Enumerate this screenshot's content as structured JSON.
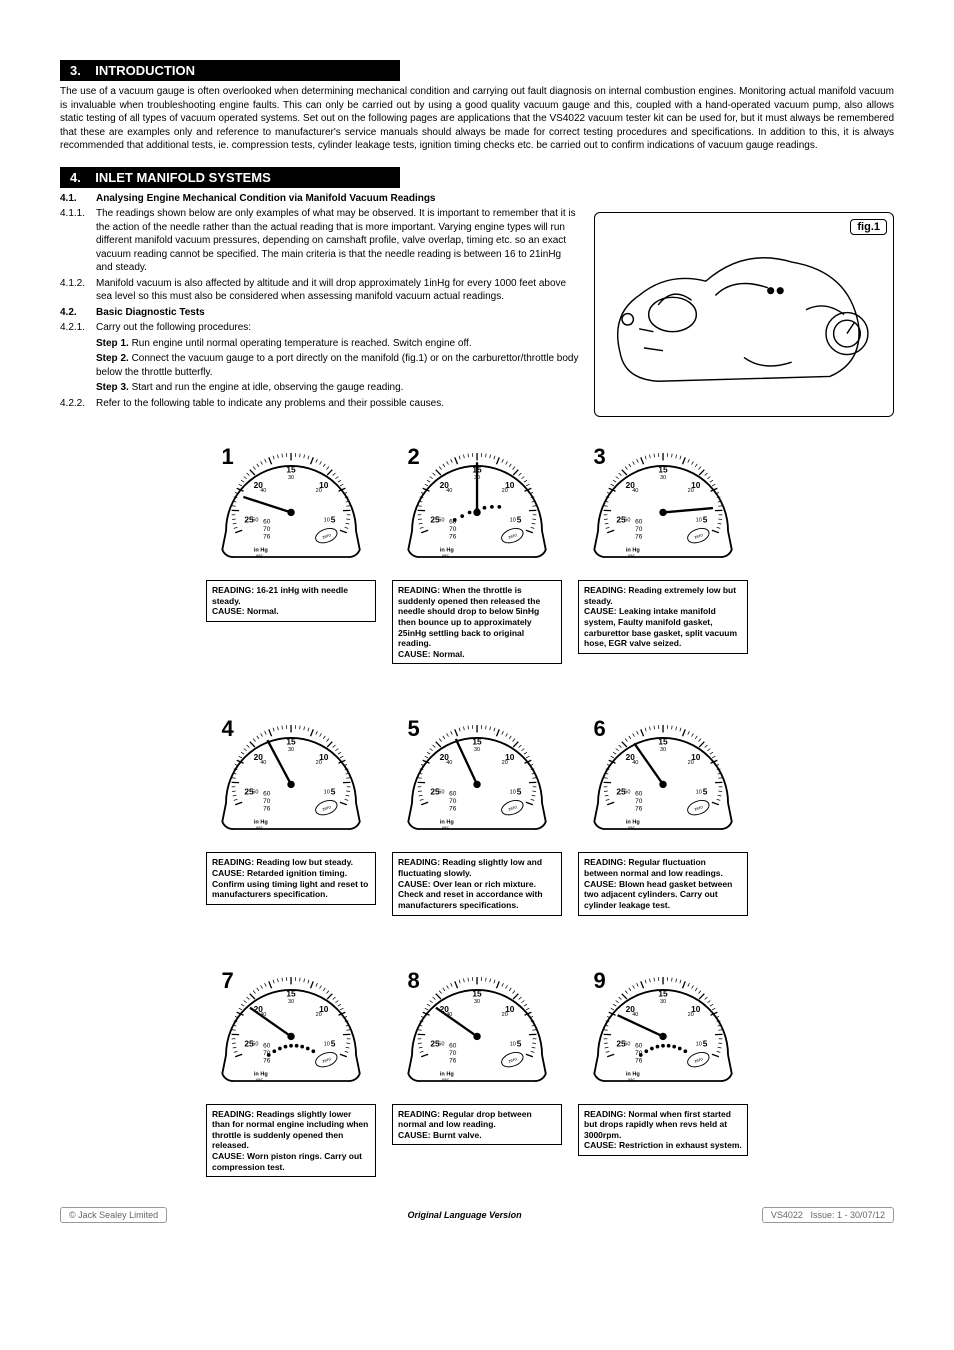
{
  "section3": {
    "number": "3.",
    "title": "INTRODUCTION",
    "text": "The use of a vacuum gauge is often overlooked when determining mechanical condition and carrying out fault diagnosis on internal combustion engines. Monitoring actual manifold vacuum is invaluable when troubleshooting engine faults. This can only be carried out by using a good quality vacuum gauge and this, coupled with a hand-operated vacuum pump, also allows static testing of all types of vacuum operated systems. Set out on the following pages are applications that the VS4022 vacuum tester kit can be used for, but it must always be remembered that these are examples only and reference to manufacturer's service manuals should always be made for correct testing procedures and specifications. In addition to this, it is always recommended that additional tests, ie. compression tests, cylinder leakage tests, ignition timing checks etc. be carried out to confirm indications of vacuum gauge readings."
  },
  "section4": {
    "number": "4.",
    "title": "INLET MANIFOLD SYSTEMS",
    "items": [
      {
        "num": "4.1.",
        "bold": true,
        "text": "Analysing Engine Mechanical Condition via Manifold Vacuum Readings"
      },
      {
        "num": "4.1.1.",
        "text": "The readings shown below are only examples of what may be observed. It is important to remember that it is the action of the needle rather than the actual reading that is more important. Varying engine types will run different manifold vacuum pressures, depending on camshaft profile, valve overlap, timing etc. so an exact vacuum reading cannot be specified. The main criteria is that the needle reading is between 16 to 21inHg and steady."
      },
      {
        "num": "4.1.2.",
        "text": "Manifold vacuum is also affected by altitude and it will drop approximately 1inHg for every 1000 feet above sea level so this must also be considered when assessing manifold vacuum actual readings."
      },
      {
        "num": "4.2.",
        "bold": true,
        "text": "Basic Diagnostic Tests"
      },
      {
        "num": "4.2.1.",
        "text": "Carry out the following procedures:"
      }
    ],
    "steps": [
      {
        "label": "Step 1.",
        "text": " Run engine until normal operating temperature is reached. Switch engine off."
      },
      {
        "label": "Step 2.",
        "text": " Connect the vacuum gauge to a port directly on the manifold (fig.1) or on the carburettor/throttle body below the throttle butterfly."
      },
      {
        "label": "Step 3.",
        "text": " Start and run the engine at idle, observing the gauge reading."
      }
    ],
    "last_item": {
      "num": "4.2.2.",
      "text": "Refer to the following table to indicate any problems and their possible causes."
    }
  },
  "fig1_label": "fig.1",
  "gauges": [
    {
      "n": "1",
      "needle_angle": -72,
      "dots": [],
      "caption": "READING: 16-21 inHg with needle steady.\nCAUSE: Normal."
    },
    {
      "n": "2",
      "needle_angle": 0,
      "dots": [
        [
          -24,
          8
        ],
        [
          -16,
          4
        ],
        [
          -8,
          0
        ],
        [
          0,
          -3
        ],
        [
          8,
          -5
        ],
        [
          16,
          -6
        ],
        [
          24,
          -6
        ]
      ],
      "caption": "READING: When the throttle is suddenly opened then released the needle should drop to below 5inHg then bounce up to approximately 25inHg settling back to original reading.\nCAUSE: Normal."
    },
    {
      "n": "3",
      "needle_angle": 85,
      "dots": [],
      "caption": "READING: Reading extremely low but steady.\nCAUSE: Leaking intake manifold system, Faulty manifold gasket, carburettor base gasket, split vacuum hose, EGR valve seized."
    },
    {
      "n": "4",
      "needle_angle": -28,
      "dots": [],
      "caption": "READING: Reading low but steady.\nCAUSE: Retarded ignition timing. Confirm using timing light and reset to manufacturers specification."
    },
    {
      "n": "5",
      "needle_angle": -25,
      "dots": [],
      "caption": "READING: Reading slightly low and fluctuating slowly.\nCAUSE: Over lean or rich mixture. Check and reset in accordance with manufacturers specifications."
    },
    {
      "n": "6",
      "needle_angle": -35,
      "dots": [],
      "caption": "READING: Regular fluctuation between normal and low readings.\nCAUSE: Blown head gasket between two adjacent cylinders. Carry out cylinder leakage test."
    },
    {
      "n": "7",
      "needle_angle": -55,
      "dots": [
        [
          -24,
          20
        ],
        [
          -18,
          16
        ],
        [
          -12,
          13
        ],
        [
          -6,
          11
        ],
        [
          0,
          10
        ],
        [
          6,
          10
        ],
        [
          12,
          11
        ],
        [
          18,
          13
        ],
        [
          24,
          16
        ]
      ],
      "caption": "READING: Readings slightly lower than for normal engine including when throttle is suddenly opened then released.\nCAUSE: Worn piston rings. Carry out compression test."
    },
    {
      "n": "8",
      "needle_angle": -55,
      "dots": [],
      "caption": "READING: Regular drop between normal and low reading.\nCAUSE: Burnt valve."
    },
    {
      "n": "9",
      "needle_angle": -65,
      "dots": [
        [
          -24,
          20
        ],
        [
          -18,
          16
        ],
        [
          -12,
          13
        ],
        [
          -6,
          11
        ],
        [
          0,
          10
        ],
        [
          6,
          10
        ],
        [
          12,
          11
        ],
        [
          18,
          13
        ],
        [
          24,
          16
        ]
      ],
      "caption": "READING: Normal when first started but drops rapidly when revs held at 3000rpm.\nCAUSE: Restriction in exhaust system."
    }
  ],
  "gauge_scale": {
    "labels": [
      "25",
      "20",
      "15",
      "10",
      "5"
    ],
    "inner_labels": [
      "50",
      "40",
      "30",
      "20",
      "10"
    ],
    "bottom_labels": [
      "60",
      "70",
      "76"
    ],
    "unit": "in Hg\nvac",
    "zero": "zero"
  },
  "footer": {
    "left": "© Jack Sealey Limited",
    "center": "Original Language Version",
    "right_model": "VS4022",
    "right_issue": "Issue: 1 - 30/07/12"
  }
}
